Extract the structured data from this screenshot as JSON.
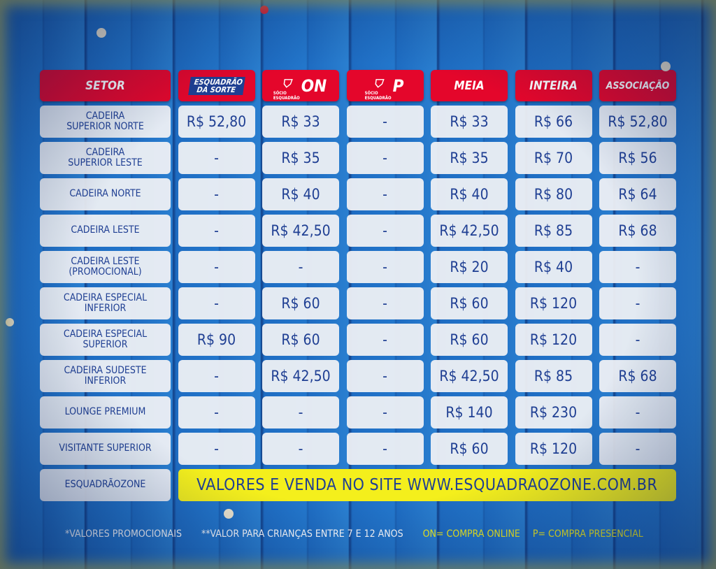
{
  "headers": {
    "setor": "SETOR",
    "esquadrao_sorte": "ESQUADRÃO DA SORTE",
    "socio_on": "ON",
    "socio_p": "P",
    "socio_label": "SÓCIO ESQUADRÃO",
    "meia": "MEIA",
    "inteira": "INTEIRA",
    "associacao": "ASSOCIAÇÃO"
  },
  "rows": [
    [
      "CADEIRA\nSUPERIOR NORTE",
      "R$ 52,80",
      "R$ 33",
      "-",
      "R$ 33",
      "R$ 66",
      "R$ 52,80"
    ],
    [
      "CADEIRA\nSUPERIOR LESTE",
      "-",
      "R$ 35",
      "-",
      "R$ 35",
      "R$ 70",
      "R$ 56"
    ],
    [
      "CADEIRA NORTE",
      "-",
      "R$ 40",
      "-",
      "R$ 40",
      "R$ 80",
      "R$ 64"
    ],
    [
      "CADEIRA LESTE",
      "-",
      "R$ 42,50",
      "-",
      "R$ 42,50",
      "R$ 85",
      "R$ 68"
    ],
    [
      "CADEIRA LESTE\n(PROMOCIONAL)",
      "-",
      "-",
      "-",
      "R$ 20",
      "R$ 40",
      "-"
    ],
    [
      "CADEIRA ESPECIAL\nINFERIOR",
      "-",
      "R$ 60",
      "-",
      "R$ 60",
      "R$ 120",
      "-"
    ],
    [
      "CADEIRA ESPECIAL\nSUPERIOR",
      "R$ 90",
      "R$ 60",
      "-",
      "R$ 60",
      "R$ 120",
      "-"
    ],
    [
      "CADEIRA SUDESTE\nINFERIOR",
      "-",
      "R$ 42,50",
      "-",
      "R$ 42,50",
      "R$ 85",
      "R$ 68"
    ],
    [
      "LOUNGE PREMIUM",
      "-",
      "-",
      "-",
      "R$ 140",
      "R$ 230",
      "-"
    ],
    [
      "VISITANTE SUPERIOR",
      "-",
      "-",
      "-",
      "R$ 60",
      "R$ 120",
      "-"
    ]
  ],
  "zone": {
    "setor": "ESQUADRÃOZONE",
    "banner": "VALORES E VENDA NO SITE WWW.ESQUADRAOZONE.COM.BR"
  },
  "footer": {
    "note1": "*VALORES PROMOCIONAIS",
    "note2": "**VALOR PARA CRIANÇAS ENTRE 7 E 12 ANOS",
    "on": "ON= COMPRA ONLINE",
    "p": "P= COMPRA PRESENCIAL"
  },
  "colors": {
    "header": "#e4062b",
    "cell_text": "#1f3f93",
    "banner": "#f4ef1c",
    "background": "#1e6cc2"
  }
}
